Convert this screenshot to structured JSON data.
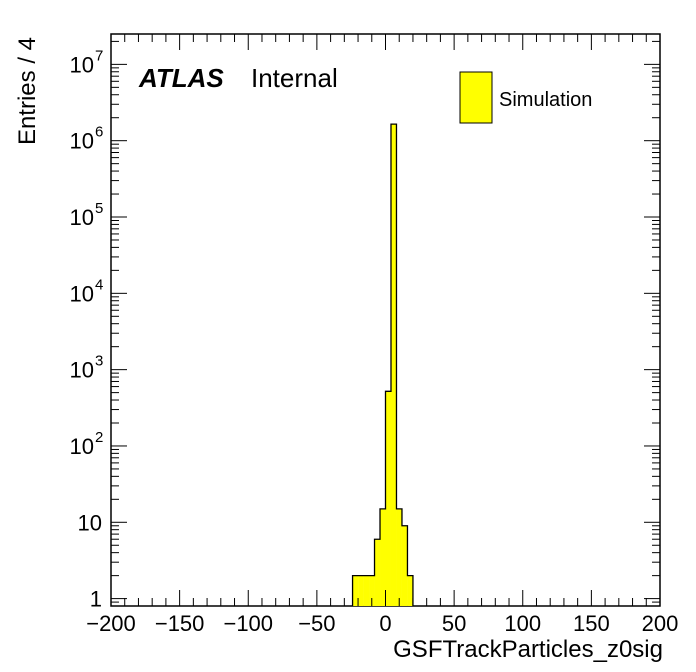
{
  "chart_data": {
    "type": "bar",
    "histogram": true,
    "xlabel": "GSFTrackParticles_z0sig",
    "ylabel": "Entries / 4",
    "xlim": [
      -200,
      200
    ],
    "ylim": [
      0.8,
      25000000
    ],
    "log_y": true,
    "x_ticks": [
      -200,
      -150,
      -100,
      -50,
      0,
      50,
      100,
      150,
      200
    ],
    "x_tick_labels": [
      "−200",
      "−150",
      "−100",
      "−50",
      "0",
      "50",
      "100",
      "150",
      "200"
    ],
    "y_ticks": [
      {
        "value": 1,
        "base": "1",
        "exp": ""
      },
      {
        "value": 10,
        "base": "10",
        "exp": ""
      },
      {
        "value": 100,
        "base": "10",
        "exp": "2"
      },
      {
        "value": 1000,
        "base": "10",
        "exp": "3"
      },
      {
        "value": 10000,
        "base": "10",
        "exp": "4"
      },
      {
        "value": 100000,
        "base": "10",
        "exp": "5"
      },
      {
        "value": 1000000,
        "base": "10",
        "exp": "6"
      },
      {
        "value": 10000000,
        "base": "10",
        "exp": "7"
      }
    ],
    "bin_width": 4,
    "bin_edges": [
      -24,
      -20,
      -16,
      -12,
      -8,
      -4,
      0,
      4,
      8,
      12,
      16,
      20
    ],
    "series": [
      {
        "name": "Simulation",
        "color": "#ffff00",
        "values": [
          2,
          2,
          2,
          2,
          6,
          15,
          520,
          1650000,
          15,
          9,
          2
        ]
      }
    ],
    "legend": {
      "position": "top-right",
      "entries": [
        "Simulation"
      ]
    },
    "grid": false
  },
  "labels": {
    "experiment": "ATLAS",
    "status": "Internal"
  },
  "colors": {
    "fill": "#ffff00",
    "line": "#000000"
  }
}
